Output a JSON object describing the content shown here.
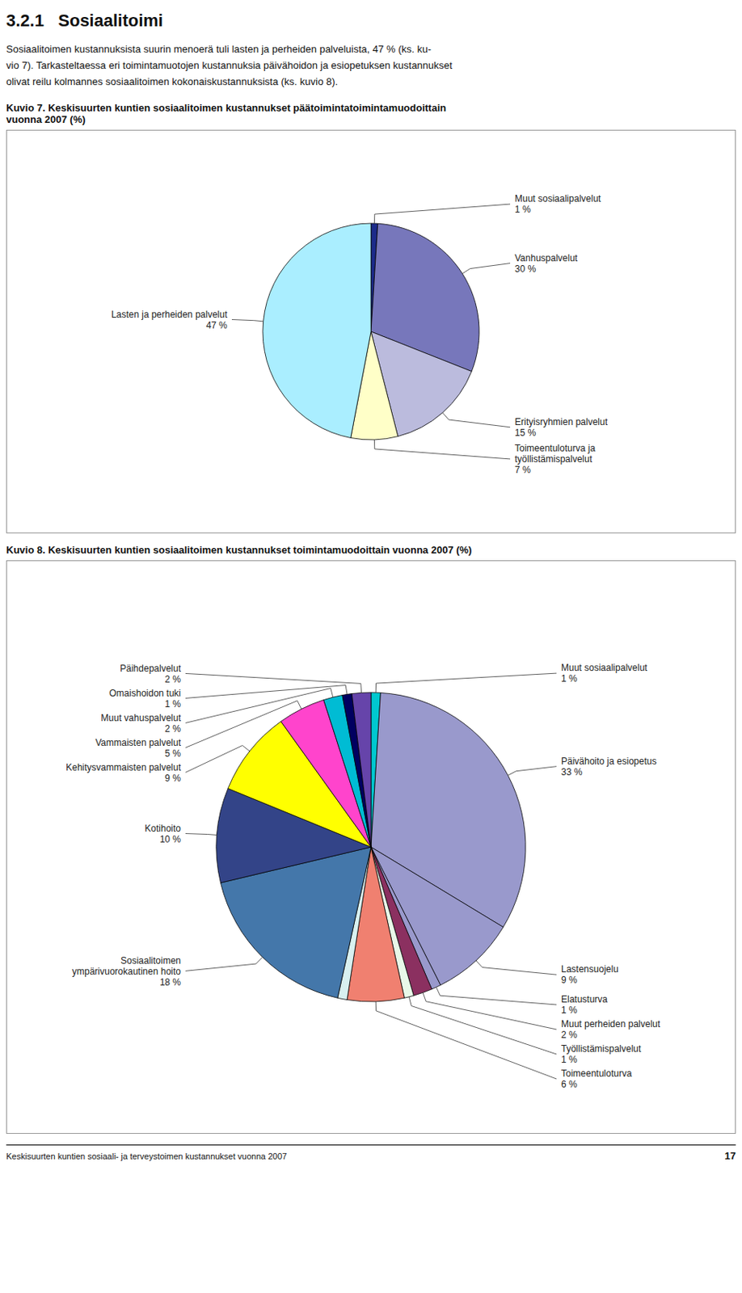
{
  "title": "3.2.1   Sosiaalitoimi",
  "subtitle": "Sosiaalitoimen kustannuksista suurin menoerä tuli lasten ja perheiden palveluista, 47 % (ks. ku-\nvio 7). Tarkasteltaessa eri toimintamuotojen kustannuksia päivähoidon ja esiopetuksen kustannukset\nolivat reilu kolmannes sosiaalitoimen kokonaiskustannuksista (ks. kuvio 8).",
  "annotations": [
    "Keskisuurten kuntien sosiaali- ja terveystoimen kustannukset vuonna 2007",
    "17"
  ],
  "chart_data": [
    {
      "type": "pie",
      "title": "Kuvio 7. Keskisuurten kuntien sosiaalitoimen kustannukset päätoimintatoimintamuodoittain\nvuonna 2007 (%)",
      "categories": [
        "Muut sosiaalipalvelut",
        "Vanhuspalvelut",
        "Erityisryhmien palvelut",
        "Toimeentuloturva ja\ntyöllistämispalvelut",
        "Lasten ja perheiden palvelut"
      ],
      "values": [
        1,
        30,
        15,
        7,
        47
      ],
      "value_labels": [
        "1 %",
        "30 %",
        "15 %",
        "7 %",
        "47 %"
      ],
      "data_labels": true,
      "colors": [
        "#1c2b8a",
        "#7777bb",
        "#bbbbdd",
        "#ffffc8",
        "#aaeeff"
      ]
    },
    {
      "type": "pie",
      "title": "Kuvio 8. Keskisuurten kuntien sosiaalitoimen kustannukset toimintamuodoittain vuonna 2007 (%)",
      "categories": [
        "Muut sosiaalipalvelut",
        "Päivähoito ja esiopetus",
        "Lastensuojelu",
        "Elatusturva",
        "Muut perheiden palvelut",
        "Työllistämispalvelut",
        "Toimeentuloturva",
        null,
        "Sosiaalitoimen\nympärivuorokautinen hoito",
        "Kotihoito",
        "Kehitysvammaisten palvelut",
        "Vammaisten palvelut",
        "Muut vahuspalvelut",
        "Omaishoidon tuki",
        "Päihdepalvelut"
      ],
      "values": [
        1,
        33,
        9,
        1,
        2,
        1,
        6,
        1,
        18,
        10,
        9,
        5,
        2,
        1,
        2
      ],
      "value_labels": [
        "1 %",
        "33 %",
        "9 %",
        "1 %",
        "2 %",
        "1 %",
        "6 %",
        null,
        "18 %",
        "10 %",
        "9 %",
        "5 %",
        "2 %",
        "1 %",
        "2 %"
      ],
      "data_labels": true,
      "colors": [
        "#00c8d0",
        "#9999cc",
        "#9999cc",
        "#9999cc",
        "#8b3060",
        "#e8f8e8",
        "#f08070",
        "#d8f0f0",
        "#4477aa",
        "#334488",
        "#ffff00",
        "#ff44cc",
        "#00bcd4",
        "#000060",
        "#6644aa"
      ]
    }
  ]
}
